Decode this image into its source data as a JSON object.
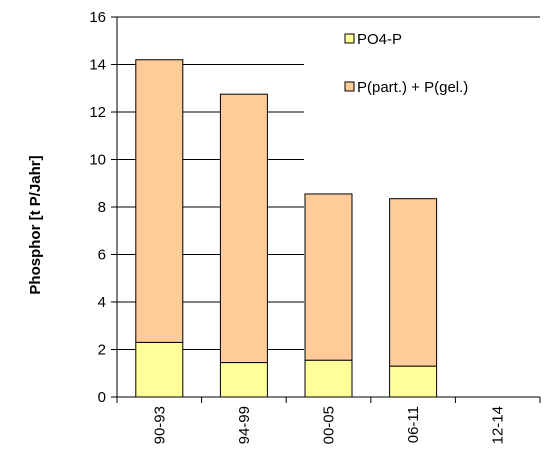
{
  "chart_data": {
    "type": "bar",
    "stacked": true,
    "categories": [
      "90-93",
      "94-99",
      "00-05",
      "06-11",
      "12-14"
    ],
    "series": [
      {
        "name": "PO4-P",
        "values": [
          2.3,
          1.45,
          1.55,
          1.3,
          null
        ],
        "color": "#ffff99"
      },
      {
        "name": "P(part.) + P(gel.)",
        "values": [
          11.9,
          11.3,
          7.0,
          7.05,
          null
        ],
        "color": "#ffcc99"
      }
    ],
    "title": "",
    "xlabel": "",
    "ylabel": "Phosphor [t P/Jahr]",
    "ylim": [
      0,
      16
    ],
    "yticks": [
      0,
      2,
      4,
      6,
      8,
      10,
      12,
      14,
      16
    ],
    "grid": true,
    "legend": "top-right"
  }
}
